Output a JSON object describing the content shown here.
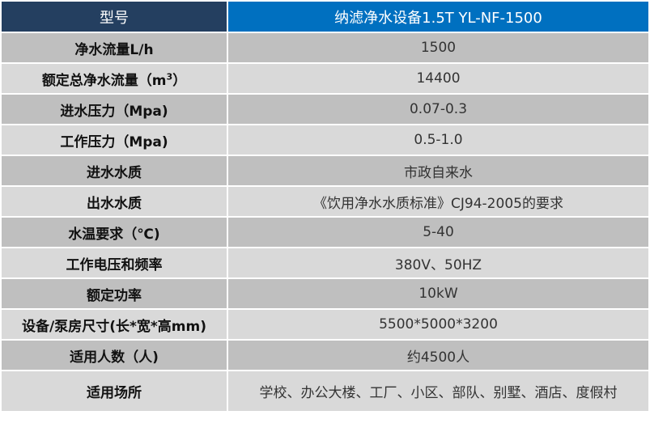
{
  "header": {
    "label": "型号",
    "value": "纳滤净水设备1.5T YL-NF-1500"
  },
  "colors": {
    "header_left": "#243f60",
    "header_right": "#0070c0",
    "row_dark": "#bfbfbf",
    "row_light": "#d9d9d9"
  },
  "rows": [
    {
      "label": "净水流量L/h",
      "value": "1500"
    },
    {
      "label": "额定总净水流量（m",
      "label_sup": "3",
      "label_end": "）",
      "value": "14400"
    },
    {
      "label": "进水压力（Mpa)",
      "value": "0.07-0.3"
    },
    {
      "label": "工作压力（Mpa)",
      "value": "0.5-1.0"
    },
    {
      "label": "进水水质",
      "value": "市政自来水"
    },
    {
      "label": "出水水质",
      "value": "《饮用净水水质标准》CJ94-2005的要求"
    },
    {
      "label": "水温要求（℃)",
      "value": "5-40"
    },
    {
      "label": "工作电压和频率",
      "value": "380V、50HZ"
    },
    {
      "label": "额定功率",
      "value": "10kW"
    },
    {
      "label": "设备/泵房尺寸(长*宽*高mm)",
      "value": "5500*5000*3200"
    },
    {
      "label": "适用人数（人)",
      "value": "约4500人"
    },
    {
      "label": "适用场所",
      "value": "学校、办公大楼、工厂、小区、部队、别墅、酒店、度假村"
    }
  ]
}
